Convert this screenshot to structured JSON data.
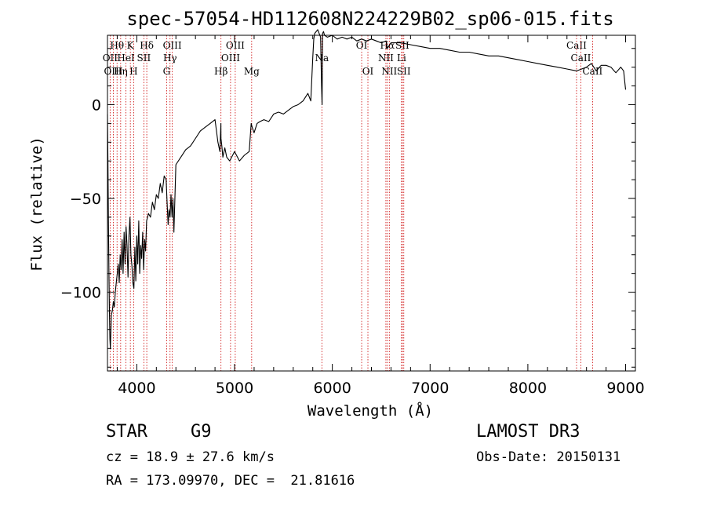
{
  "chart_data": {
    "type": "line",
    "title": "spec-57054-HD112608N224229B02_sp06-015.fits",
    "xlabel": "Wavelength (Å)",
    "ylabel": "Flux (relative)",
    "xlim": [
      3700,
      9100
    ],
    "ylim": [
      -142,
      37
    ],
    "xticks": [
      4000,
      5000,
      6000,
      7000,
      8000,
      9000
    ],
    "yticks": [
      0,
      -50,
      -100
    ],
    "line_color": "#000000",
    "marker_color": "#cc0000",
    "series": [
      {
        "x": [
          3700,
          3705,
          3710,
          3715,
          3720,
          3725,
          3730,
          3740,
          3750,
          3760,
          3770,
          3780,
          3790,
          3800,
          3810,
          3820,
          3830,
          3840,
          3850,
          3860,
          3870,
          3880,
          3890,
          3900,
          3910,
          3920,
          3930,
          3940,
          3950,
          3960,
          3970,
          3980,
          3990,
          4000,
          4010,
          4020,
          4030,
          4040,
          4050,
          4060,
          4070,
          4080,
          4090,
          4100,
          4120,
          4140,
          4160,
          4180,
          4200,
          4220,
          4240,
          4260,
          4280,
          4300,
          4310,
          4320,
          4330,
          4340,
          4350,
          4360,
          4370,
          4380,
          4400,
          4450,
          4500,
          4550,
          4600,
          4650,
          4700,
          4750,
          4800,
          4830,
          4850,
          4860,
          4861,
          4870,
          4880,
          4900,
          4920,
          4950,
          5000,
          5050,
          5100,
          5150,
          5170,
          5180,
          5200,
          5230,
          5260,
          5300,
          5350,
          5400,
          5450,
          5500,
          5550,
          5600,
          5650,
          5700,
          5750,
          5780,
          5800,
          5810,
          5820,
          5850,
          5880,
          5890,
          5895,
          5900,
          5910,
          5920,
          5950,
          6000,
          6050,
          6100,
          6150,
          6200,
          6250,
          6300,
          6350,
          6400,
          6450,
          6500,
          6550,
          6563,
          6600,
          6700,
          6800,
          6900,
          7000,
          7100,
          7200,
          7300,
          7400,
          7500,
          7600,
          7700,
          7800,
          7900,
          8000,
          8100,
          8200,
          8300,
          8400,
          8500,
          8550,
          8600,
          8650,
          8700,
          8750,
          8800,
          8850,
          8900,
          8950,
          8980,
          9000
        ],
        "values": [
          -5,
          -30,
          -60,
          -90,
          -110,
          -125,
          -130,
          -112,
          -110,
          -105,
          -108,
          -100,
          -95,
          -90,
          -85,
          -95,
          -80,
          -88,
          -72,
          -90,
          -68,
          -85,
          -65,
          -75,
          -92,
          -70,
          -60,
          -80,
          -86,
          -95,
          -98,
          -76,
          -94,
          -70,
          -85,
          -62,
          -90,
          -75,
          -82,
          -68,
          -88,
          -72,
          -78,
          -62,
          -58,
          -60,
          -52,
          -56,
          -48,
          -50,
          -42,
          -47,
          -38,
          -40,
          -52,
          -64,
          -56,
          -60,
          -48,
          -60,
          -50,
          -68,
          -32,
          -28,
          -24,
          -22,
          -18,
          -14,
          -12,
          -10,
          -8,
          -20,
          -25,
          -10,
          -18,
          -22,
          -28,
          -23,
          -28,
          -30,
          -25,
          -30,
          -27,
          -25,
          -10,
          -12,
          -15,
          -10,
          -9,
          -8,
          -9,
          -5,
          -4,
          -5,
          -3,
          -1,
          0,
          2,
          6,
          2,
          25,
          35,
          38,
          40,
          36,
          10,
          0,
          38,
          39,
          37,
          36,
          37,
          35,
          36,
          35,
          36,
          34,
          35,
          34,
          35,
          34,
          33,
          34,
          30,
          33,
          33,
          32,
          31,
          30,
          30,
          29,
          28,
          28,
          27,
          26,
          26,
          25,
          24,
          23,
          22,
          21,
          20,
          19,
          18,
          19,
          20,
          22,
          18,
          21,
          21,
          20,
          17,
          20,
          18,
          8
        ]
      }
    ],
    "line_markers": [
      {
        "label": "Hθ",
        "x": 3798,
        "row": 0
      },
      {
        "label": "K",
        "x": 3934,
        "row": 0
      },
      {
        "label": "Hδ",
        "x": 4102,
        "row": 0
      },
      {
        "label": "OIII",
        "x": 4363,
        "row": 0
      },
      {
        "label": "OIII",
        "x": 5007,
        "row": 0
      },
      {
        "label": "OI",
        "x": 6300,
        "row": 0
      },
      {
        "label": "Hα",
        "x": 6563,
        "row": 0
      },
      {
        "label": "SII",
        "x": 6716,
        "row": 0
      },
      {
        "label": "CaII",
        "x": 8498,
        "row": 0
      },
      {
        "label": "OII",
        "x": 3727,
        "row": 1
      },
      {
        "label": "HeI",
        "x": 3889,
        "row": 1
      },
      {
        "label": "SII",
        "x": 4072,
        "row": 1
      },
      {
        "label": "Hγ",
        "x": 4340,
        "row": 1
      },
      {
        "label": "OIII",
        "x": 4959,
        "row": 1
      },
      {
        "label": "Na",
        "x": 5893,
        "row": 1
      },
      {
        "label": "NII",
        "x": 6548,
        "row": 1
      },
      {
        "label": "Li",
        "x": 6708,
        "row": 1
      },
      {
        "label": "CaII",
        "x": 8542,
        "row": 1
      },
      {
        "label": "OIII",
        "x": 3760,
        "row": 2
      },
      {
        "label": "Hη",
        "x": 3835,
        "row": 2
      },
      {
        "label": "H",
        "x": 3968,
        "row": 2
      },
      {
        "label": "G",
        "x": 4305,
        "row": 2
      },
      {
        "label": "Hβ",
        "x": 4861,
        "row": 2
      },
      {
        "label": "Mg",
        "x": 5175,
        "row": 2
      },
      {
        "label": "OI",
        "x": 6364,
        "row": 2
      },
      {
        "label": "NII",
        "x": 6583,
        "row": 2
      },
      {
        "label": "SII",
        "x": 6731,
        "row": 2
      },
      {
        "label": "CaII",
        "x": 8662,
        "row": 2
      }
    ]
  },
  "info": {
    "object_type": "STAR",
    "subclass": "G9",
    "survey": "LAMOST DR3",
    "cz": "cz = 18.9 ± 27.6 km/s",
    "obs_date": "Obs-Date: 20150131",
    "coords": "RA = 173.09970, DEC =  21.81616"
  }
}
